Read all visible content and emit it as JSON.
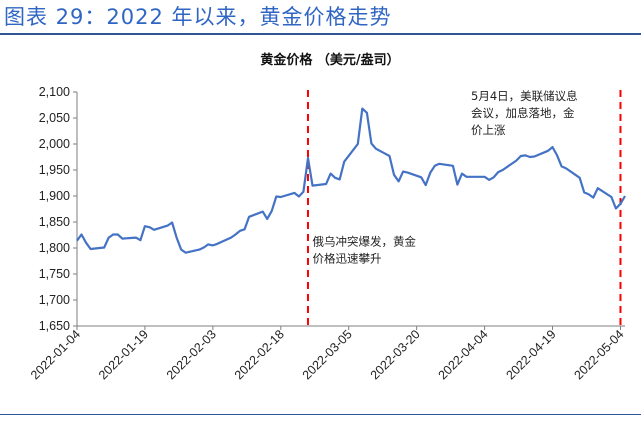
{
  "figure_title": "图表 29：2022 年以来，黄金价格走势",
  "chart_data": {
    "type": "line",
    "title": "黄金价格 （美元/盎司）",
    "xlabel": "",
    "ylabel": "",
    "ylim": [
      1650,
      2100
    ],
    "y_ticks": [
      1650,
      1700,
      1750,
      1800,
      1850,
      1900,
      1950,
      2000,
      2050,
      2100
    ],
    "y_tick_labels": [
      "1,650",
      "1,700",
      "1,750",
      "1,800",
      "1,850",
      "1,900",
      "1,950",
      "2,000",
      "2,050",
      "2,100"
    ],
    "x_tick_labels": [
      "2022-01-04",
      "2022-01-19",
      "2022-02-03",
      "2022-02-18",
      "2022-03-05",
      "2022-03-20",
      "2022-04-04",
      "2022-04-19",
      "2022-05-04"
    ],
    "x_tick_dates": [
      "2022-01-04",
      "2022-01-19",
      "2022-02-03",
      "2022-02-18",
      "2022-03-05",
      "2022-03-20",
      "2022-04-04",
      "2022-04-19",
      "2022-05-04"
    ],
    "grid": false,
    "line_color": "#4472c4",
    "series": [
      {
        "color": "#4472c4",
        "points": [
          [
            "2022-01-04",
            1814
          ],
          [
            "2022-01-05",
            1826
          ],
          [
            "2022-01-06",
            1810
          ],
          [
            "2022-01-07",
            1798
          ],
          [
            "2022-01-10",
            1801
          ],
          [
            "2022-01-11",
            1820
          ],
          [
            "2022-01-12",
            1826
          ],
          [
            "2022-01-13",
            1826
          ],
          [
            "2022-01-14",
            1818
          ],
          [
            "2022-01-17",
            1820
          ],
          [
            "2022-01-18",
            1815
          ],
          [
            "2022-01-19",
            1842
          ],
          [
            "2022-01-20",
            1840
          ],
          [
            "2022-01-21",
            1835
          ],
          [
            "2022-01-24",
            1843
          ],
          [
            "2022-01-25",
            1849
          ],
          [
            "2022-01-26",
            1820
          ],
          [
            "2022-01-27",
            1797
          ],
          [
            "2022-01-28",
            1791
          ],
          [
            "2022-01-31",
            1797
          ],
          [
            "2022-02-01",
            1801
          ],
          [
            "2022-02-02",
            1807
          ],
          [
            "2022-02-03",
            1805
          ],
          [
            "2022-02-04",
            1808
          ],
          [
            "2022-02-07",
            1820
          ],
          [
            "2022-02-08",
            1826
          ],
          [
            "2022-02-09",
            1833
          ],
          [
            "2022-02-10",
            1836
          ],
          [
            "2022-02-11",
            1860
          ],
          [
            "2022-02-14",
            1870
          ],
          [
            "2022-02-15",
            1856
          ],
          [
            "2022-02-16",
            1871
          ],
          [
            "2022-02-17",
            1899
          ],
          [
            "2022-02-18",
            1898
          ],
          [
            "2022-02-21",
            1906
          ],
          [
            "2022-02-22",
            1899
          ],
          [
            "2022-02-23",
            1908
          ],
          [
            "2022-02-24",
            1973
          ],
          [
            "2022-02-25",
            1920
          ],
          [
            "2022-02-28",
            1923
          ],
          [
            "2022-03-01",
            1943
          ],
          [
            "2022-03-02",
            1935
          ],
          [
            "2022-03-03",
            1932
          ],
          [
            "2022-03-04",
            1966
          ],
          [
            "2022-03-07",
            2000
          ],
          [
            "2022-03-08",
            2068
          ],
          [
            "2022-03-09",
            2060
          ],
          [
            "2022-03-10",
            2001
          ],
          [
            "2022-03-11",
            1991
          ],
          [
            "2022-03-14",
            1977
          ],
          [
            "2022-03-15",
            1941
          ],
          [
            "2022-03-16",
            1928
          ],
          [
            "2022-03-17",
            1947
          ],
          [
            "2022-03-18",
            1945
          ],
          [
            "2022-03-21",
            1936
          ],
          [
            "2022-03-22",
            1921
          ],
          [
            "2022-03-23",
            1945
          ],
          [
            "2022-03-24",
            1958
          ],
          [
            "2022-03-25",
            1962
          ],
          [
            "2022-03-28",
            1958
          ],
          [
            "2022-03-29",
            1922
          ],
          [
            "2022-03-30",
            1943
          ],
          [
            "2022-03-31",
            1937
          ],
          [
            "2022-04-01",
            1937
          ],
          [
            "2022-04-04",
            1937
          ],
          [
            "2022-04-05",
            1931
          ],
          [
            "2022-04-06",
            1936
          ],
          [
            "2022-04-07",
            1946
          ],
          [
            "2022-04-08",
            1950
          ],
          [
            "2022-04-11",
            1968
          ],
          [
            "2022-04-12",
            1977
          ],
          [
            "2022-04-13",
            1978
          ],
          [
            "2022-04-14",
            1975
          ],
          [
            "2022-04-15",
            1976
          ],
          [
            "2022-04-18",
            1987
          ],
          [
            "2022-04-19",
            1994
          ],
          [
            "2022-04-20",
            1978
          ],
          [
            "2022-04-21",
            1957
          ],
          [
            "2022-04-22",
            1953
          ],
          [
            "2022-04-25",
            1935
          ],
          [
            "2022-04-26",
            1907
          ],
          [
            "2022-04-27",
            1903
          ],
          [
            "2022-04-28",
            1897
          ],
          [
            "2022-04-29",
            1915
          ],
          [
            "2022-05-02",
            1898
          ],
          [
            "2022-05-03",
            1876
          ],
          [
            "2022-05-04",
            1885
          ],
          [
            "2022-05-05",
            1900
          ]
        ]
      }
    ],
    "markers": [
      {
        "date": "2022-02-24",
        "color": "#ff0000",
        "style": "dashed"
      },
      {
        "date": "2022-05-04",
        "color": "#ff0000",
        "style": "dashed"
      }
    ],
    "annotations": [
      {
        "lines": [
          "俄乌冲突爆发，黄金",
          "价格迅速攀升"
        ],
        "anchor_date": "2022-02-25",
        "anchor_value": 1805
      },
      {
        "lines": [
          "5月4日，美联储议息",
          "会议，加息落地，金",
          "价上涨"
        ],
        "anchor_date": "2022-04-01",
        "anchor_value": 2085
      }
    ]
  }
}
